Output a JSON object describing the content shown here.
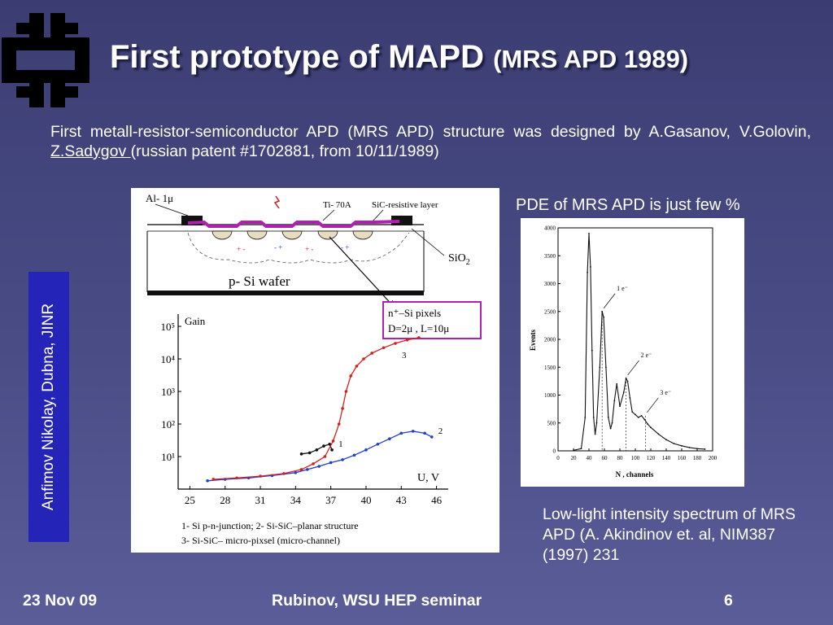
{
  "slide": {
    "title_main": "First prototype of MAPD",
    "title_sub": "(MRS APD 1989)",
    "intro": {
      "text_before": "First metall-resistor-semiconductor APD (MRS APD) structure was designed by A.Gasanov, V.Golovin, ",
      "link_name": "Z.Sadygov",
      "text_after": " (russian patent #1702881, from 10/11/1989)"
    },
    "vertical_label": "Anfimov Nikolay,  Dubna,  JINR",
    "pde_text": "PDE of MRS APD is just few %",
    "caption": "Low-light intensity spectrum of MRS APD (A. Akindinov et. al,  NIM387 (1997) 231",
    "footer": {
      "date": "23 Nov 09",
      "center": "Rubinov, WSU HEP seminar",
      "page": "6"
    }
  },
  "structure_figure": {
    "label_al": "Al- 1μ",
    "label_ti": "Ti- 70A",
    "label_sic": "SiC-resistive layer",
    "label_sio2": "SiO",
    "label_sio2_sub": "2",
    "label_wafer": "p- Si  wafer",
    "pixels_box_line1": "n⁺–Si  pixels",
    "pixels_box_line2": "D=2μ ,   L=10μ",
    "legend_line1": "1- Si  p-n-junction;  2- Si-SiC–planar structure",
    "legend_line2": "3- Si-SiC– micro-pixsel (micro-channel)"
  },
  "chart_data": [
    {
      "type": "line",
      "title": "",
      "ylabel": "Gain",
      "xlabel": "U,  V",
      "y_scale": "log",
      "ylim": [
        1,
        100000
      ],
      "xlim": [
        24,
        47
      ],
      "x_ticks": [
        "25",
        "28",
        "31",
        "34",
        "37",
        "40",
        "43",
        "46"
      ],
      "y_ticks": [
        "10⁵",
        "10⁴",
        "10³",
        "10²",
        "10¹"
      ],
      "series": [
        {
          "name": "1",
          "color": "#111111",
          "x": [
            34.5,
            35.2,
            35.8,
            36.4,
            36.9,
            37.1
          ],
          "y": [
            12,
            13,
            16,
            21,
            24,
            16
          ]
        },
        {
          "name": "2",
          "color": "#1f3fcf",
          "x": [
            26.5,
            28,
            30,
            32,
            34,
            35,
            36,
            37,
            38,
            39,
            40,
            41,
            42,
            43,
            44,
            45,
            45.6
          ],
          "y": [
            1.8,
            2.0,
            2.2,
            2.6,
            3.2,
            4,
            5,
            6.5,
            8,
            11,
            16,
            24,
            35,
            52,
            60,
            52,
            40
          ]
        },
        {
          "name": "3",
          "color": "#d42020",
          "x": [
            27,
            29,
            31,
            33,
            34.5,
            35.5,
            36.5,
            37.2,
            37.7,
            38,
            38.3,
            38.7,
            39.2,
            39.8,
            40.5,
            41.5,
            42.5,
            43.5,
            44.5
          ],
          "y": [
            2,
            2.2,
            2.5,
            3,
            4,
            6,
            10,
            30,
            100,
            300,
            1000,
            3000,
            6000,
            10000,
            15000,
            22000,
            30000,
            38000,
            45000
          ]
        }
      ]
    },
    {
      "type": "line",
      "title": "",
      "ylabel": "Events",
      "xlabel": "N , channels",
      "xlim": [
        0,
        200
      ],
      "ylim": [
        0,
        4000
      ],
      "x_ticks": [
        "0",
        "20",
        "40",
        "60",
        "80",
        "100",
        "120",
        "140",
        "160",
        "180",
        "200"
      ],
      "y_ticks": [
        "0",
        "500",
        "1000",
        "1500",
        "2000",
        "2500",
        "3000",
        "3500",
        "4000"
      ],
      "annotations": [
        "1 e⁻",
        "2 e⁻",
        "3 e⁻"
      ],
      "series": [
        {
          "name": "",
          "color": "#111111",
          "x": [
            20,
            30,
            35,
            38,
            40,
            42,
            44,
            46,
            48,
            50,
            54,
            57,
            59,
            62,
            65,
            68,
            70,
            73,
            76,
            80,
            85,
            88,
            90,
            93,
            96,
            100,
            104,
            108,
            112,
            116,
            120,
            130,
            140,
            150,
            160,
            170,
            180,
            190
          ],
          "y": [
            10,
            40,
            600,
            3200,
            3900,
            3300,
            1800,
            600,
            300,
            500,
            1500,
            2500,
            2400,
            1500,
            600,
            400,
            500,
            900,
            1200,
            800,
            1050,
            1300,
            1250,
            950,
            700,
            650,
            600,
            630,
            560,
            480,
            420,
            300,
            200,
            130,
            90,
            60,
            40,
            30
          ]
        }
      ]
    }
  ]
}
